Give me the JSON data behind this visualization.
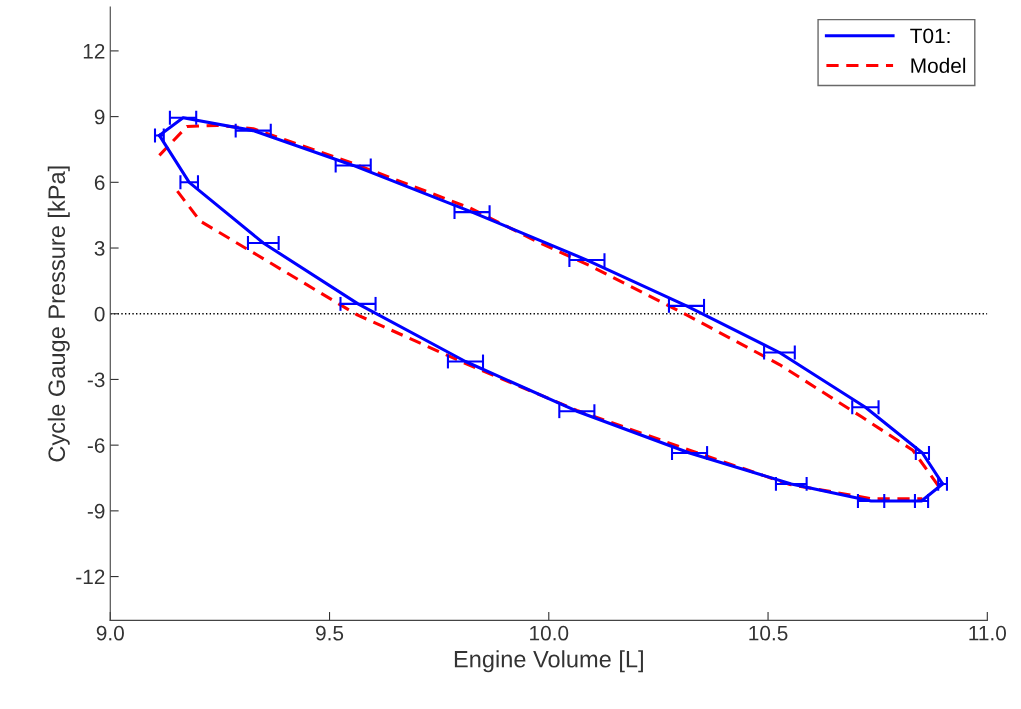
{
  "chart_data": {
    "type": "line",
    "xlabel": "Engine Volume [L]",
    "ylabel": "Cycle Gauge Pressure [kPa]",
    "xlim": [
      9.0,
      11.0
    ],
    "xticks": [
      {
        "value": 9.0,
        "label": "9.0"
      },
      9.5,
      {
        "value": 10.0,
        "label": "10.0"
      },
      10.5,
      {
        "value": 11.0,
        "label": "11.0"
      }
    ],
    "ylim": [
      -14,
      14
    ],
    "yticks": [
      -12,
      -9,
      -6,
      -3,
      0,
      3,
      6,
      9,
      12
    ],
    "grid": false,
    "legend": "top right",
    "ref_lines": [
      {
        "axis": "y",
        "value": 0,
        "color": "#000000",
        "line_style": "dotted"
      }
    ],
    "series": [
      {
        "name": "T01:",
        "color": "#0000ff",
        "line_style": "solid",
        "x": [
          9.112,
          9.166,
          9.326,
          9.554,
          9.825,
          10.087,
          10.314,
          10.526,
          10.722,
          10.852,
          10.898
        ],
        "values": [
          8.14,
          8.95,
          8.36,
          6.77,
          4.64,
          2.45,
          0.36,
          -1.77,
          -4.27,
          -6.36,
          -7.77
        ],
        "xerrors": [
          0.01,
          0.03,
          0.04,
          0.04,
          0.04,
          0.04,
          0.04,
          0.035,
          0.03,
          0.015,
          0.01
        ]
      },
      {
        "color": "#0000ff",
        "line_style": "solid",
        "x": [
          9.112,
          9.18,
          9.349,
          9.565,
          9.81,
          10.064,
          10.321,
          10.553,
          10.735,
          10.85,
          10.898
        ],
        "values": [
          8.14,
          6.0,
          3.23,
          0.45,
          -2.18,
          -4.45,
          -6.36,
          -7.77,
          -8.55,
          -8.55,
          -7.77
        ],
        "xerrors": [
          null,
          0.02,
          0.035,
          0.04,
          0.04,
          0.04,
          0.04,
          0.035,
          0.03,
          0.015,
          null
        ]
      },
      {
        "name": "Model",
        "color": "#ff0000",
        "line_style": "dashed",
        "x": [
          9.112,
          9.175,
          9.244,
          9.326,
          9.554,
          9.821,
          9.98,
          10.095,
          10.314,
          10.526,
          10.715,
          10.83,
          10.89
        ],
        "values": [
          7.23,
          8.55,
          8.6,
          8.45,
          6.86,
          4.82,
          3.23,
          2.18,
          -0.05,
          -2.32,
          -4.73,
          -6.23,
          -7.9
        ]
      },
      {
        "color": "#ff0000",
        "line_style": "dashed",
        "x": [
          9.153,
          9.205,
          9.335,
          9.563,
          9.82,
          10.064,
          10.321,
          10.55,
          10.738,
          10.852
        ],
        "values": [
          5.6,
          4.23,
          2.68,
          -0.05,
          -2.36,
          -4.41,
          -6.23,
          -7.8,
          -8.45,
          -8.45
        ]
      }
    ]
  }
}
